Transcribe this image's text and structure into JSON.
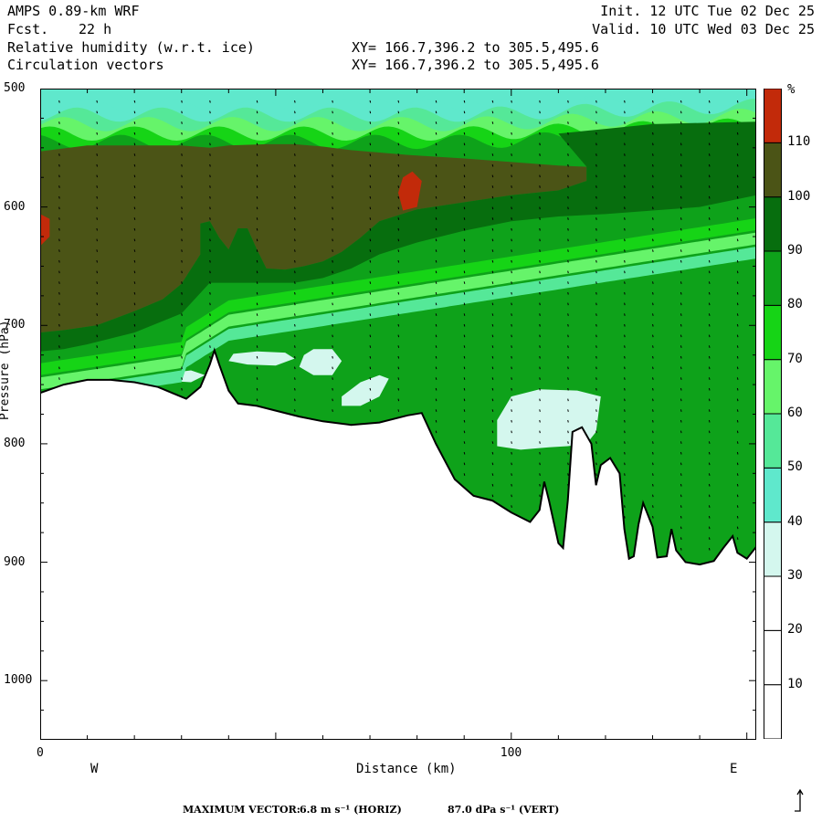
{
  "header": {
    "model": "AMPS 0.89-km WRF",
    "fcst_label": "Fcst.",
    "fcst_value": "22 h",
    "init": "Init. 12 UTC Tue 02 Dec 25",
    "valid": "Valid. 10 UTC Wed 03 Dec 25",
    "field1": "Relative humidity (w.r.t. ice)",
    "field2": "Circulation vectors",
    "xy1": "XY= 166.7,396.2 to 305.5,495.6",
    "xy2": "XY= 166.7,396.2 to 305.5,495.6"
  },
  "footer": {
    "max_label": "MAXIMUM VECTOR:",
    "horiz": "6.8 m s⁻¹ (HORIZ)",
    "vert": "87.0 dPa s⁻¹ (VERT)"
  },
  "chart_data": {
    "type": "contour-cross-section",
    "title": "Relative humidity (w.r.t. ice)",
    "xlabel": "Distance (km)",
    "ylabel": "Pressure (hPa)",
    "x_ticks": [
      "0",
      "100"
    ],
    "y_ticks": [
      "500",
      "600",
      "700",
      "800",
      "900",
      "1000"
    ],
    "xlim": [
      0,
      152
    ],
    "ylim": [
      500,
      1050
    ],
    "direction_labels": [
      "W",
      "E"
    ],
    "colorbar": {
      "unit": "%",
      "levels": [
        10,
        20,
        30,
        40,
        50,
        60,
        70,
        80,
        90,
        100,
        110
      ],
      "colors": [
        "#ffffff",
        "#ffffff",
        "#ffffff",
        "#d4f7ee",
        "#5fe8cc",
        "#55e898",
        "#66f46a",
        "#16d416",
        "#0ea21a",
        "#076e0e",
        "#4b5416",
        "#c22a0a"
      ]
    },
    "terrain_hpa": [
      [
        0,
        757
      ],
      [
        5,
        750
      ],
      [
        10,
        746
      ],
      [
        15,
        746
      ],
      [
        20,
        748
      ],
      [
        25,
        752
      ],
      [
        28,
        757
      ],
      [
        31,
        762
      ],
      [
        34,
        752
      ],
      [
        36,
        733
      ],
      [
        37,
        721
      ],
      [
        38,
        733
      ],
      [
        40,
        755
      ],
      [
        42,
        766
      ],
      [
        46,
        768
      ],
      [
        50,
        772
      ],
      [
        55,
        777
      ],
      [
        60,
        781
      ],
      [
        66,
        784
      ],
      [
        72,
        782
      ],
      [
        78,
        776
      ],
      [
        81,
        774
      ],
      [
        84,
        800
      ],
      [
        88,
        830
      ],
      [
        92,
        844
      ],
      [
        96,
        848
      ],
      [
        100,
        858
      ],
      [
        104,
        866
      ],
      [
        106,
        856
      ],
      [
        107,
        832
      ],
      [
        108,
        848
      ],
      [
        110,
        884
      ],
      [
        111,
        888
      ],
      [
        112,
        848
      ],
      [
        113,
        790
      ],
      [
        115,
        786
      ],
      [
        117,
        800
      ],
      [
        118,
        835
      ],
      [
        119,
        818
      ],
      [
        121,
        812
      ],
      [
        123,
        825
      ],
      [
        124,
        872
      ],
      [
        125,
        897
      ],
      [
        126,
        895
      ],
      [
        127,
        868
      ],
      [
        128,
        850
      ],
      [
        130,
        870
      ],
      [
        131,
        896
      ],
      [
        133,
        895
      ],
      [
        134,
        872
      ],
      [
        135,
        890
      ],
      [
        137,
        900
      ],
      [
        140,
        902
      ],
      [
        143,
        899
      ],
      [
        145,
        888
      ],
      [
        147,
        878
      ],
      [
        148,
        892
      ],
      [
        150,
        897
      ],
      [
        152,
        887
      ]
    ],
    "regions": [
      {
        "rh": 100,
        "poly": [
          [
            0,
            553
          ],
          [
            10,
            548
          ],
          [
            20,
            548
          ],
          [
            30,
            548
          ],
          [
            36,
            550
          ],
          [
            40,
            548
          ],
          [
            48,
            547
          ],
          [
            54,
            547
          ],
          [
            60,
            549
          ],
          [
            66,
            552
          ],
          [
            72,
            554
          ],
          [
            78,
            556
          ],
          [
            90,
            559
          ],
          [
            100,
            562
          ],
          [
            110,
            565
          ],
          [
            116,
            566
          ],
          [
            116,
            578
          ],
          [
            110,
            586
          ],
          [
            100,
            590
          ],
          [
            90,
            596
          ],
          [
            80,
            602
          ],
          [
            72,
            612
          ],
          [
            68,
            626
          ],
          [
            64,
            638
          ],
          [
            60,
            646
          ],
          [
            56,
            650
          ],
          [
            52,
            653
          ],
          [
            48,
            652
          ],
          [
            46,
            636
          ],
          [
            44,
            618
          ],
          [
            42,
            618
          ],
          [
            40,
            636
          ],
          [
            38,
            626
          ],
          [
            36,
            612
          ],
          [
            34,
            614
          ],
          [
            34,
            640
          ],
          [
            30,
            665
          ],
          [
            26,
            678
          ],
          [
            20,
            688
          ],
          [
            12,
            700
          ],
          [
            5,
            704
          ],
          [
            0,
            706
          ]
        ]
      },
      {
        "rh": 90,
        "poly": [
          [
            110,
            538
          ],
          [
            120,
            534
          ],
          [
            130,
            530
          ],
          [
            140,
            529
          ],
          [
            152,
            528
          ],
          [
            152,
            590
          ],
          [
            140,
            600
          ],
          [
            130,
            603
          ],
          [
            120,
            606
          ],
          [
            110,
            608
          ],
          [
            100,
            612
          ],
          [
            90,
            620
          ],
          [
            80,
            630
          ],
          [
            72,
            640
          ],
          [
            66,
            652
          ],
          [
            60,
            660
          ],
          [
            54,
            664
          ],
          [
            46,
            664
          ],
          [
            40,
            664
          ],
          [
            36,
            664
          ],
          [
            30,
            690
          ],
          [
            20,
            706
          ],
          [
            10,
            716
          ],
          [
            5,
            720
          ],
          [
            0,
            722
          ],
          [
            0,
            706
          ],
          [
            5,
            704
          ],
          [
            12,
            700
          ],
          [
            20,
            688
          ],
          [
            26,
            678
          ],
          [
            30,
            665
          ],
          [
            34,
            640
          ],
          [
            34,
            614
          ],
          [
            36,
            612
          ],
          [
            38,
            626
          ],
          [
            40,
            636
          ],
          [
            42,
            618
          ],
          [
            44,
            618
          ],
          [
            46,
            636
          ],
          [
            48,
            652
          ],
          [
            52,
            653
          ],
          [
            56,
            650
          ],
          [
            60,
            646
          ],
          [
            64,
            638
          ],
          [
            68,
            626
          ],
          [
            72,
            612
          ],
          [
            80,
            602
          ],
          [
            90,
            596
          ],
          [
            100,
            590
          ],
          [
            110,
            586
          ],
          [
            116,
            578
          ],
          [
            116,
            566
          ]
        ]
      },
      {
        "rh": 35,
        "poly": [
          [
            56,
            725
          ],
          [
            58,
            720
          ],
          [
            62,
            720
          ],
          [
            64,
            730
          ],
          [
            62,
            742
          ],
          [
            58,
            742
          ],
          [
            55,
            735
          ]
        ]
      },
      {
        "rh": 35,
        "poly": [
          [
            41,
            724
          ],
          [
            46,
            722
          ],
          [
            52,
            723
          ],
          [
            54,
            728
          ],
          [
            50,
            734
          ],
          [
            44,
            733
          ],
          [
            40,
            730
          ]
        ]
      },
      {
        "rh": 35,
        "poly": [
          [
            28,
            740
          ],
          [
            32,
            738
          ],
          [
            35,
            742
          ],
          [
            32,
            748
          ],
          [
            28,
            747
          ]
        ]
      },
      {
        "rh": 35,
        "poly": [
          [
            64,
            760
          ],
          [
            68,
            748
          ],
          [
            72,
            742
          ],
          [
            74,
            745
          ],
          [
            72,
            760
          ],
          [
            68,
            768
          ],
          [
            64,
            768
          ]
        ]
      },
      {
        "rh": 35,
        "poly": [
          [
            97,
            780
          ],
          [
            100,
            760
          ],
          [
            106,
            754
          ],
          [
            114,
            755
          ],
          [
            119,
            760
          ],
          [
            118,
            790
          ],
          [
            116,
            800
          ],
          [
            112,
            802
          ],
          [
            108,
            803
          ],
          [
            102,
            805
          ],
          [
            97,
            802
          ]
        ]
      },
      {
        "rh": 120,
        "poly": [
          [
            76,
            588
          ],
          [
            77,
            575
          ],
          [
            79,
            570
          ],
          [
            81,
            578
          ],
          [
            80,
            600
          ],
          [
            77,
            603
          ]
        ]
      },
      {
        "rh": 120,
        "poly": [
          [
            0,
            606
          ],
          [
            2,
            610
          ],
          [
            2,
            625
          ],
          [
            0,
            633
          ]
        ]
      }
    ]
  }
}
